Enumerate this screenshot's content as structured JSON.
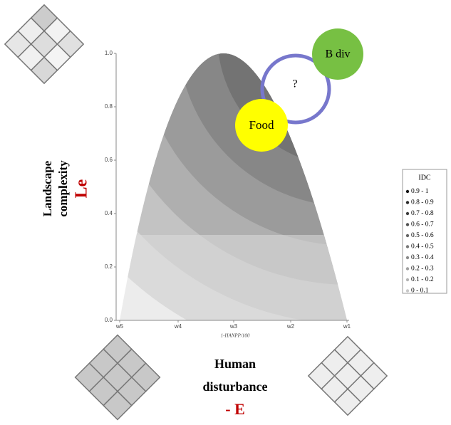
{
  "plot": {
    "yticks": [
      {
        "value": 0,
        "label": "0.0"
      },
      {
        "value": 0.2,
        "label": "0.2"
      },
      {
        "value": 0.4,
        "label": "0.4"
      },
      {
        "value": 0.6,
        "label": "0.6"
      },
      {
        "value": 0.8,
        "label": "0.8"
      },
      {
        "value": 1,
        "label": "1.0"
      }
    ],
    "ylim": [
      0,
      1
    ],
    "xticks": [
      "w5",
      "w4",
      "w3",
      "w2",
      "w1"
    ],
    "x_label": "1-HANPP/100"
  },
  "y_title": {
    "line1": "Landscape",
    "line2": "complexity",
    "symbol": "Le"
  },
  "x_title": {
    "line1": "Human",
    "line2": "disturbance",
    "symbol": "- E"
  },
  "bubbles": {
    "food": "Food",
    "biodiversity": "B div",
    "question": "?"
  },
  "legend": {
    "title": "IDC",
    "items": [
      "0.9 - 1",
      "0.8 - 0.9",
      "0.7 - 0.8",
      "0.6 - 0.7",
      "0.5 - 0.6",
      "0.4 - 0.5",
      "0.3 - 0.4",
      "0.2 - 0.3",
      "0.1 - 0.2",
      "0 - 0.1"
    ]
  }
}
